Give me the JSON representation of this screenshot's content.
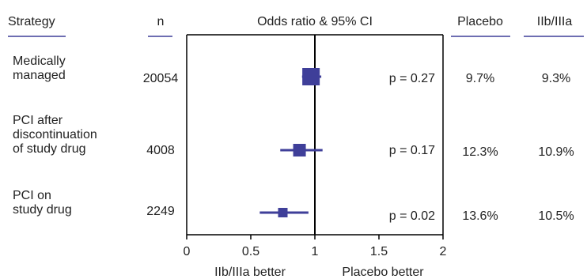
{
  "columns": {
    "strategy": "Strategy",
    "n": "n",
    "or": "Odds ratio & 95% CI",
    "placebo": "Placebo",
    "gp": "IIb/IIIa"
  },
  "rows": [
    {
      "label_lines": [
        "Medically",
        "managed"
      ],
      "n": "20054",
      "p": "p = 0.27",
      "placebo": "9.7%",
      "gp": "9.3%"
    },
    {
      "label_lines": [
        "PCI after",
        "discontinuation",
        "of study drug"
      ],
      "n": "4008",
      "p": "p = 0.17",
      "placebo": "12.3%",
      "gp": "10.9%"
    },
    {
      "label_lines": [
        "PCI on",
        "study drug"
      ],
      "n": "2249",
      "p": "p = 0.02",
      "placebo": "13.6%",
      "gp": "10.5%"
    }
  ],
  "x_axis": {
    "ticks": [
      "0",
      "0.5",
      "1",
      "1.5",
      "2"
    ],
    "favours_left": "IIb/IIIa better",
    "favours_right": "Placebo better"
  },
  "colors": {
    "marker": "#3f3f99",
    "header_rule": "#3f3f99",
    "axis": "#000000"
  },
  "chart_data": {
    "type": "forest",
    "xlim": [
      0,
      2
    ],
    "reference_line": 1,
    "series": [
      {
        "name": "Medically managed",
        "odds_ratio": 0.97,
        "ci": [
          0.9,
          1.05
        ]
      },
      {
        "name": "PCI after discontinuation of study drug",
        "odds_ratio": 0.88,
        "ci": [
          0.73,
          1.06
        ]
      },
      {
        "name": "PCI on study drug",
        "odds_ratio": 0.75,
        "ci": [
          0.57,
          0.95
        ]
      }
    ]
  }
}
